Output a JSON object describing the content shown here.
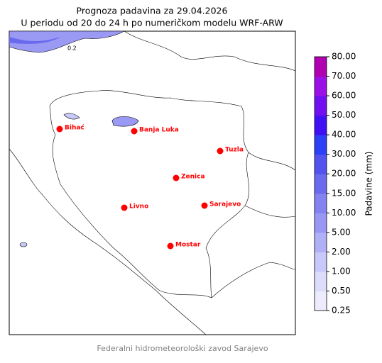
{
  "title": [
    "Prognoza padavina za 29.04.2026",
    "U periodu od 20 do 24 h po numeričkom modelu WRF-ARW"
  ],
  "cities": [
    "Bihać",
    "Banja Luka",
    "Tuzla",
    "Zenica",
    "Livno",
    "Sarajevo",
    "Mostar"
  ],
  "contour_label": "0.2",
  "colorbar": {
    "label": "Padavine (mm)",
    "ticks": [
      {
        "value": 0.25,
        "label": "0.25"
      },
      {
        "value": 0.5,
        "label": "0.50"
      },
      {
        "value": 1,
        "label": "1.00"
      },
      {
        "value": 2,
        "label": "2.00"
      },
      {
        "value": 5,
        "label": "5.00"
      },
      {
        "value": 10,
        "label": "10.00"
      },
      {
        "value": 15,
        "label": "15.00"
      },
      {
        "value": 20,
        "label": "20.00"
      },
      {
        "value": 30,
        "label": "30.00"
      },
      {
        "value": 40,
        "label": "40.00"
      },
      {
        "value": 50,
        "label": "50.00"
      },
      {
        "value": 60,
        "label": "60.00"
      },
      {
        "value": 70,
        "label": "70.00"
      },
      {
        "value": 80,
        "label": "80.00"
      }
    ],
    "colors": [
      "#ececfc",
      "#dcdcfb",
      "#c8c8fa",
      "#b0b0f7",
      "#9898f4",
      "#8282f1",
      "#6a6aee",
      "#5252ee",
      "#2c40f8",
      "#4010f4",
      "#7010f0",
      "#9a10e6",
      "#b000b0"
    ]
  },
  "footer": "Federalni hidrometeorološki zavod Sarajevo"
}
